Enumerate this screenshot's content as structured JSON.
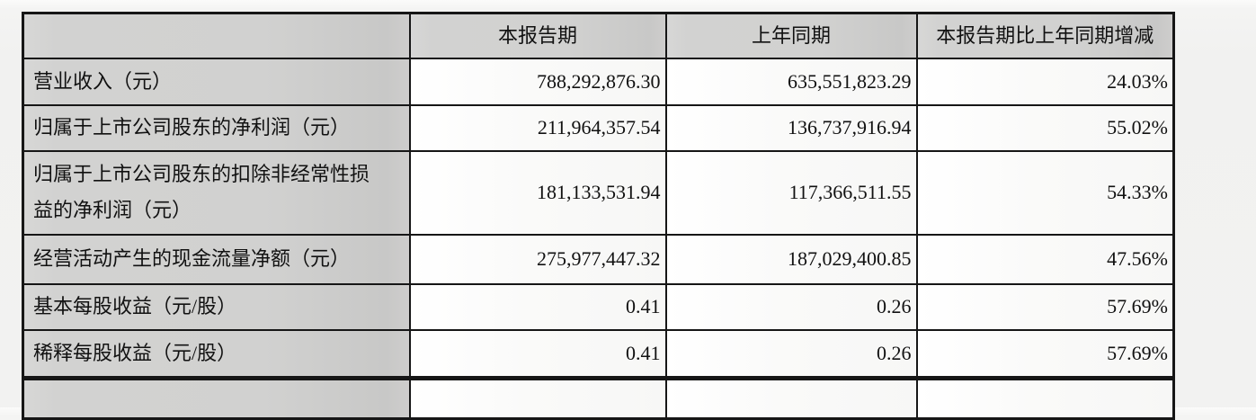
{
  "table": {
    "headers": {
      "indicator": "",
      "current_period": "本报告期",
      "prior_period": "上年同期",
      "change": "本报告期比上年同期增减"
    },
    "rows": [
      {
        "label": "营业收入（元）",
        "current": "788,292,876.30",
        "prior": "635,551,823.29",
        "change": "24.03%"
      },
      {
        "label": "归属于上市公司股东的净利润（元）",
        "current": "211,964,357.54",
        "prior": "136,737,916.94",
        "change": "55.02%"
      },
      {
        "label": "归属于上市公司股东的扣除非经常性损益的净利润（元）",
        "current": "181,133,531.94",
        "prior": "117,366,511.55",
        "change": "54.33%"
      },
      {
        "label": "经营活动产生的现金流量净额（元）",
        "current": "275,977,447.32",
        "prior": "187,029,400.85",
        "change": "47.56%"
      },
      {
        "label": "基本每股收益（元/股）",
        "current": "0.41",
        "prior": "0.26",
        "change": "57.69%"
      },
      {
        "label": "稀释每股收益（元/股）",
        "current": "0.41",
        "prior": "0.26",
        "change": "57.69%"
      }
    ],
    "colors": {
      "header_bg": "#d1d1d0",
      "label_bg": "#d1d1d0",
      "value_bg": "#fafaf9",
      "border": "#161616",
      "page_bg": "#f1f1f0",
      "text": "#111111"
    }
  }
}
